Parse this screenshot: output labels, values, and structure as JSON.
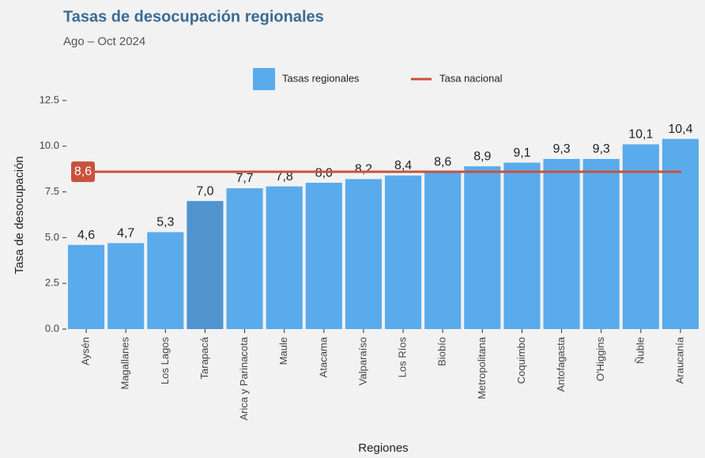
{
  "chart_data": {
    "type": "bar",
    "title": "Tasas de desocupación regionales",
    "subtitle": "Ago – Oct 2024",
    "x_label": "Regiones",
    "y_label": "Tasa de desocupación",
    "categories": [
      "Aysén",
      "Magallanes",
      "Los Lagos",
      "Tarapacá",
      "Arica y Parinacota",
      "Maule",
      "Atacama",
      "Valparaíso",
      "Los Ríos",
      "Biobío",
      "Metropolitana",
      "Coquimbo",
      "Antofagasta",
      "O'Higgins",
      "Ñuble",
      "Araucanía"
    ],
    "series": [
      {
        "name": "Tasas regionales",
        "values": [
          4.6,
          4.7,
          5.3,
          7.0,
          7.7,
          7.8,
          8.0,
          8.2,
          8.4,
          8.6,
          8.9,
          9.1,
          9.3,
          9.3,
          10.1,
          10.4
        ],
        "value_labels": [
          "4,6",
          "4,7",
          "5,3",
          "7,0",
          "7,7",
          "7,8",
          "8,0",
          "8,2",
          "8,4",
          "8,6",
          "8,9",
          "9,1",
          "9,3",
          "9,3",
          "10,1",
          "10,4"
        ],
        "colors": [
          "#5aabeb",
          "#5aabeb",
          "#5aabeb",
          "#4f94cf",
          "#5aabeb",
          "#5aabeb",
          "#5aabeb",
          "#5aabeb",
          "#5aabeb",
          "#5aabeb",
          "#5aabeb",
          "#5aabeb",
          "#5aabeb",
          "#5aabeb",
          "#5aabeb",
          "#5aabeb"
        ]
      }
    ],
    "reference_line": {
      "name": "Tasa nacional",
      "value": 8.6,
      "value_label": "8,6",
      "color": "#c9513d"
    },
    "ylim": [
      0,
      12.5
    ],
    "yticks": [
      {
        "value": 0,
        "label": "0.0"
      },
      {
        "value": 2.5,
        "label": "2.5"
      },
      {
        "value": 5,
        "label": "5.0"
      },
      {
        "value": 7.5,
        "label": "7.5"
      },
      {
        "value": 10,
        "label": "10.0"
      },
      {
        "value": 12.5,
        "label": "12.5"
      }
    ],
    "grid": false,
    "legend_position": "top"
  }
}
